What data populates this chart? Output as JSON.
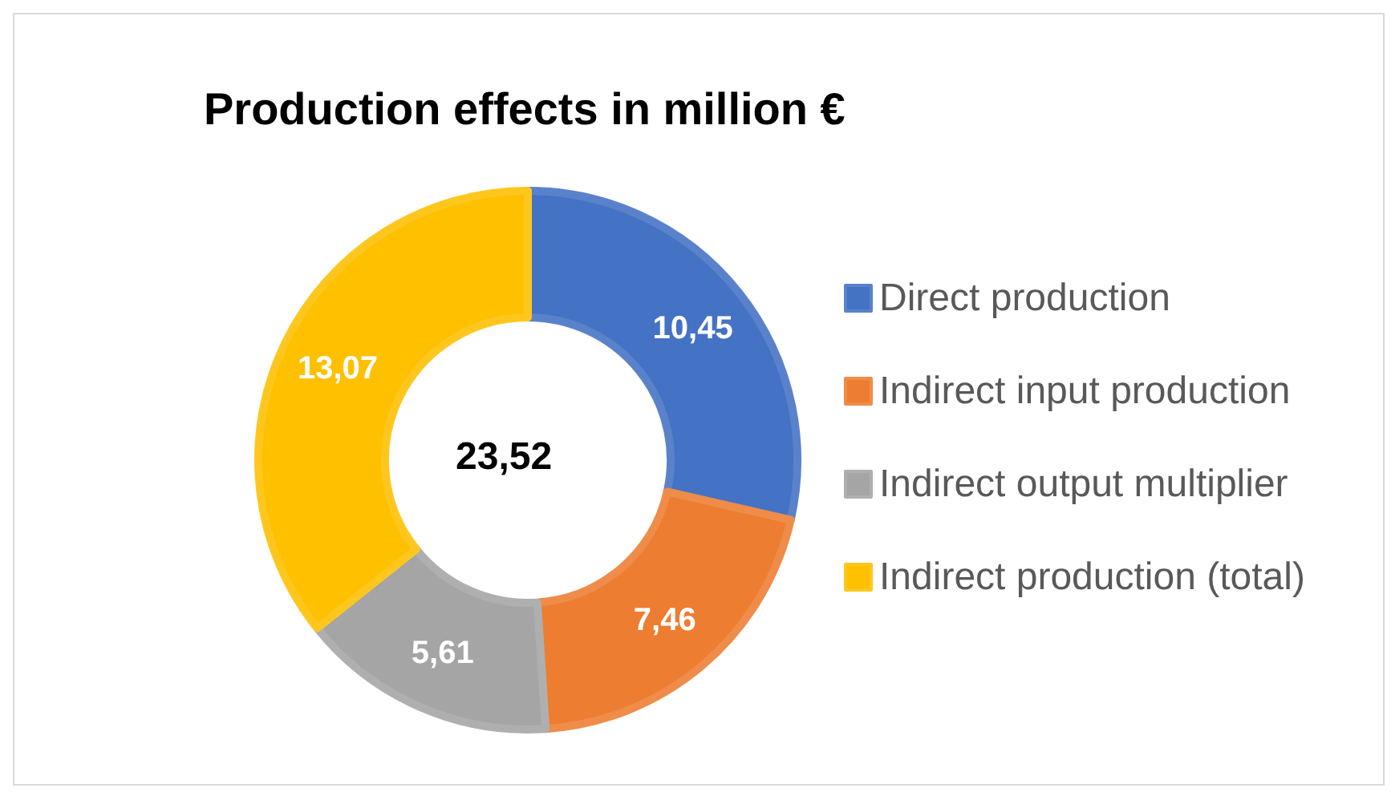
{
  "chart_data": {
    "type": "donut",
    "title": "Production effects in million €",
    "categories": [
      "Direct production",
      "Indirect input production",
      "Indirect output multiplier",
      "Indirect production (total)"
    ],
    "values": [
      10.45,
      7.46,
      5.61,
      13.07
    ],
    "colors": [
      "#4472c4",
      "#ed7d31",
      "#a5a5a5",
      "#ffc000"
    ],
    "value_labels": [
      "10,45",
      "7,46",
      "5,61",
      "13,07"
    ],
    "annotations": [
      "23,52"
    ],
    "legend": "right"
  }
}
